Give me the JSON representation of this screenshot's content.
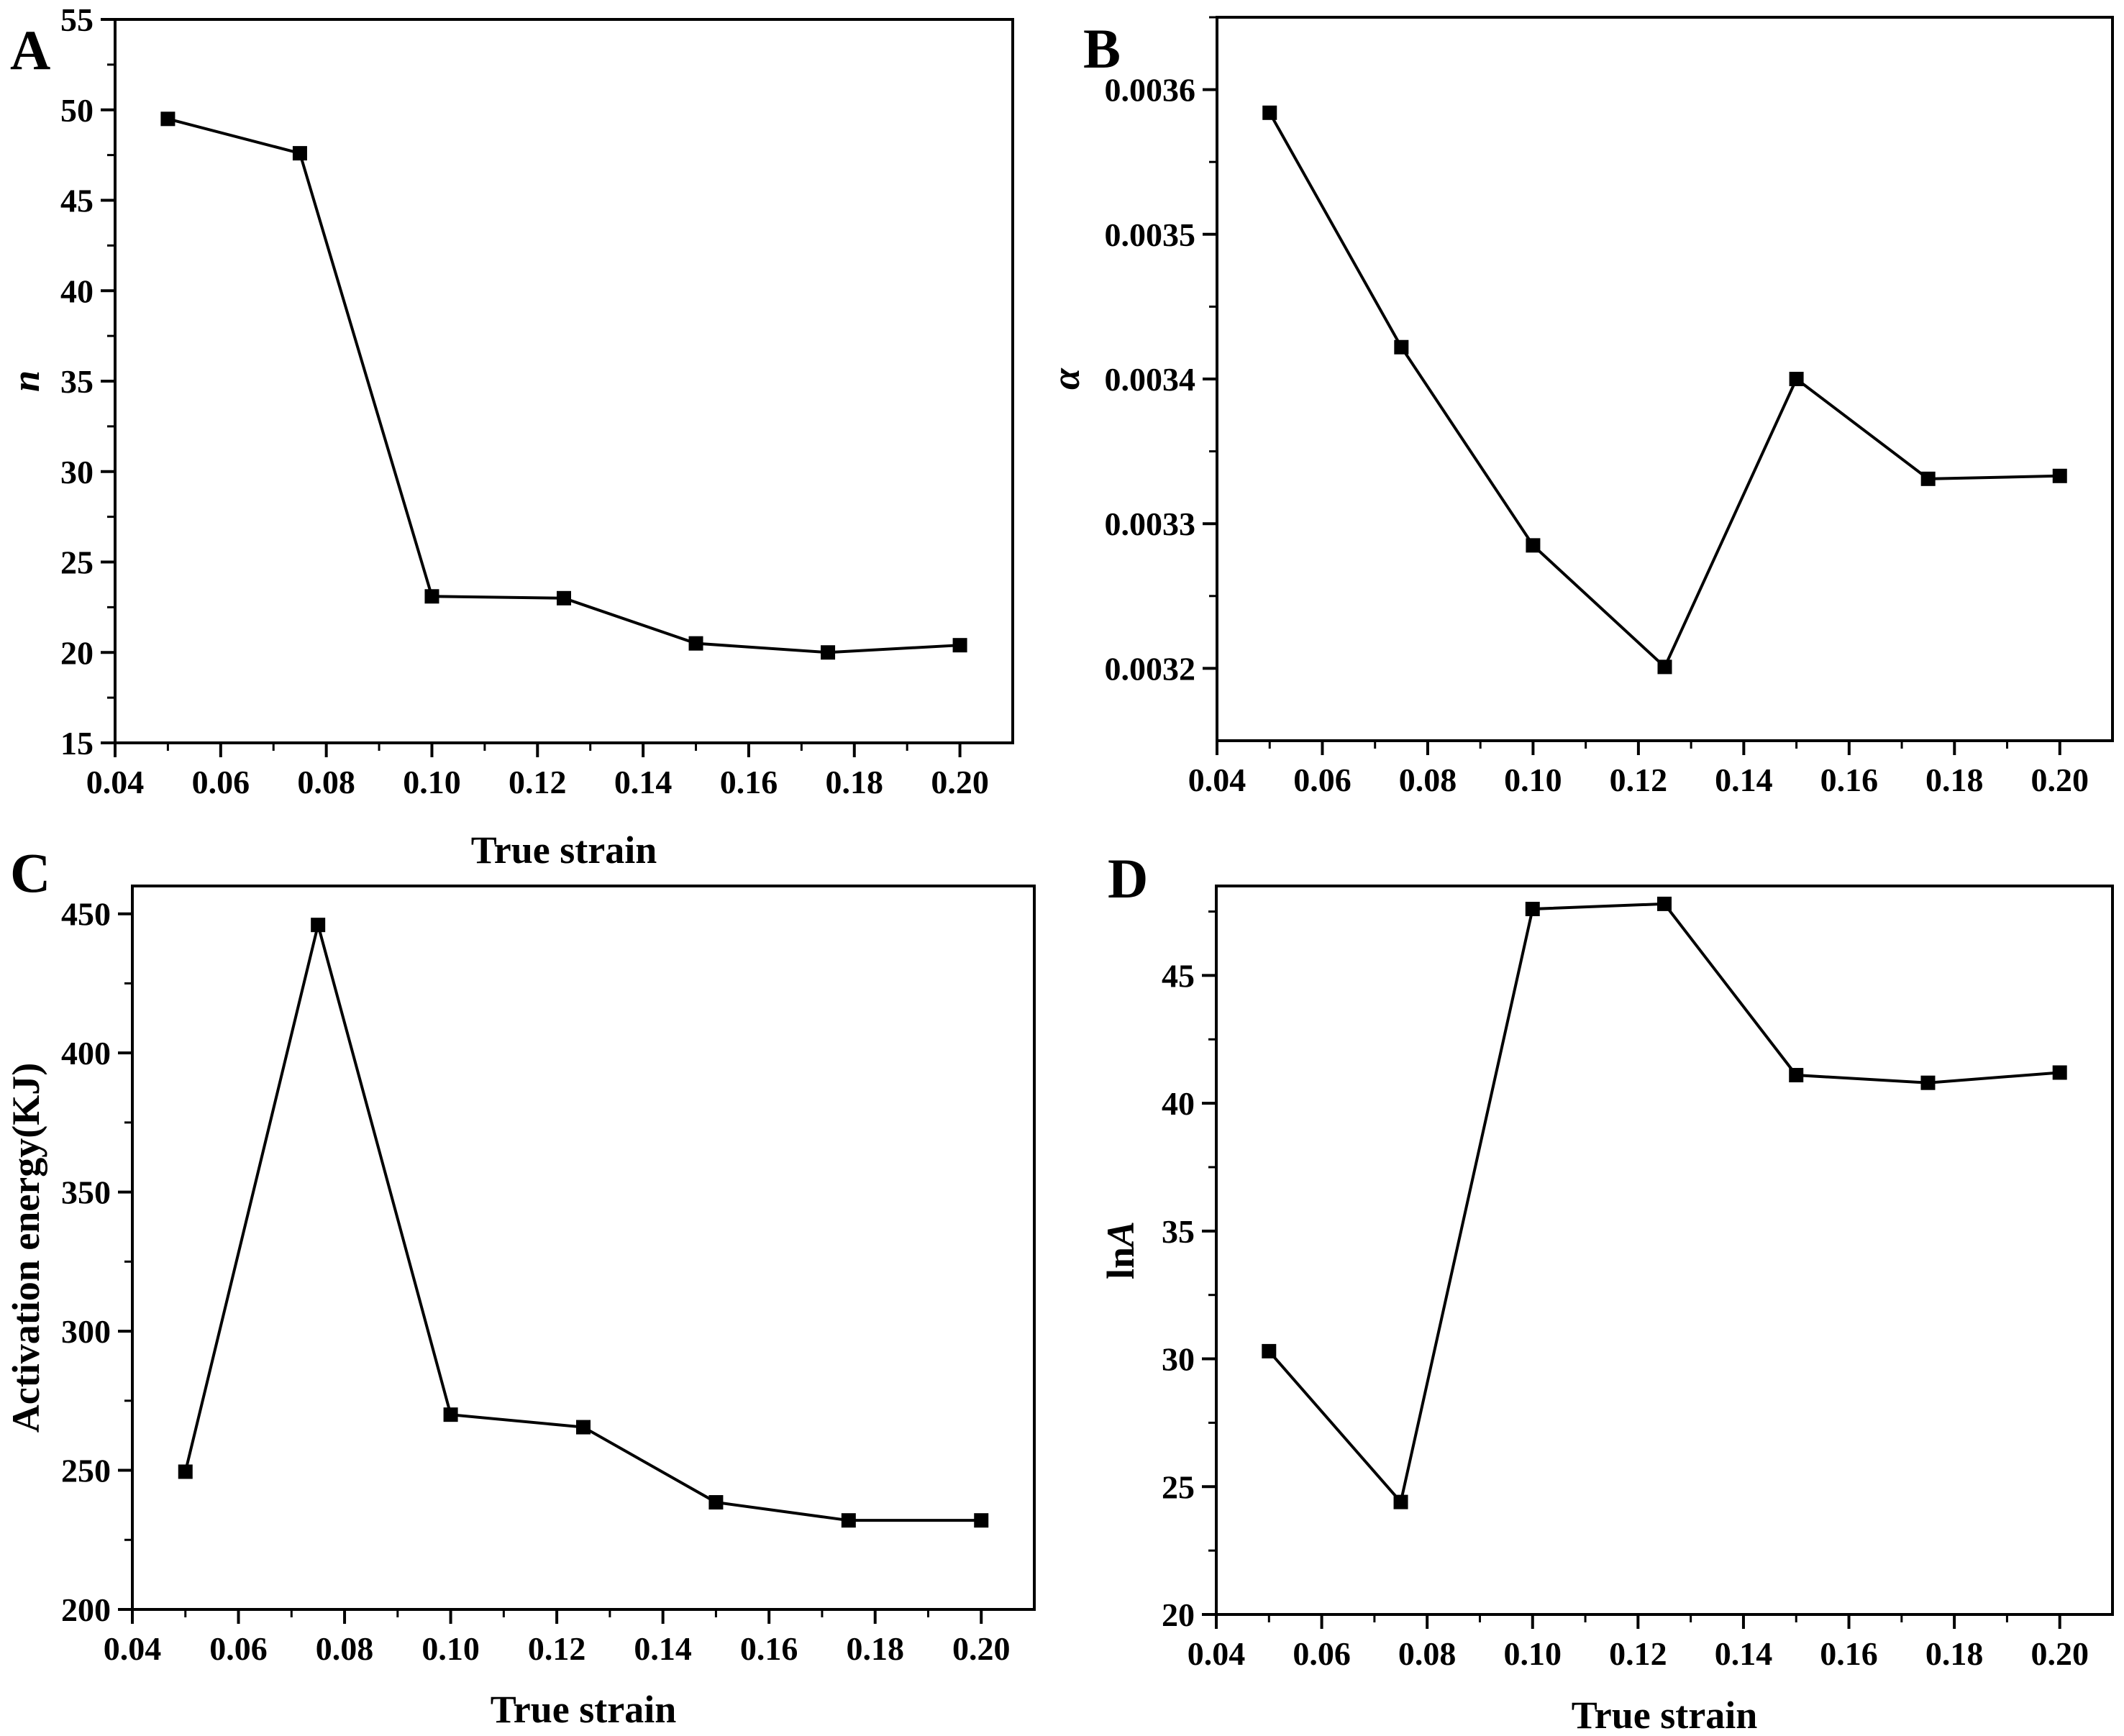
{
  "chart_data": [
    {
      "panel": "A",
      "type": "line",
      "xlabel": "True strain",
      "ylabel": "n",
      "xlim": [
        0.04,
        0.21
      ],
      "ylim": [
        15,
        55
      ],
      "xticks": [
        "0.04",
        "0.06",
        "0.08",
        "0.10",
        "0.12",
        "0.14",
        "0.16",
        "0.18",
        "0.20"
      ],
      "yticks": [
        "15",
        "20",
        "25",
        "30",
        "35",
        "40",
        "45",
        "50",
        "55"
      ],
      "x": [
        0.05,
        0.075,
        0.1,
        0.125,
        0.15,
        0.175,
        0.2
      ],
      "values": [
        49.5,
        47.6,
        23.1,
        23.0,
        20.5,
        20.0,
        20.4
      ],
      "marker": "square",
      "grid": false,
      "legend": null
    },
    {
      "panel": "B",
      "type": "line",
      "xlabel": "",
      "ylabel": "α",
      "xlim": [
        0.04,
        0.21
      ],
      "ylim": [
        0.00315,
        0.00365
      ],
      "xticks": [
        "0.04",
        "0.06",
        "0.08",
        "0.10",
        "0.12",
        "0.14",
        "0.16",
        "0.18",
        "0.20"
      ],
      "yticks": [
        "0.0032",
        "0.0033",
        "0.0034",
        "0.0035",
        "0.0036"
      ],
      "x": [
        0.05,
        0.075,
        0.1,
        0.125,
        0.15,
        0.175,
        0.2
      ],
      "values": [
        0.003584,
        0.003422,
        0.003285,
        0.003201,
        0.0034,
        0.003331,
        0.003333
      ],
      "marker": "square",
      "grid": false,
      "legend": null
    },
    {
      "panel": "C",
      "type": "line",
      "xlabel": "True strain",
      "ylabel": "Activation energy(KJ)",
      "xlim": [
        0.04,
        0.21
      ],
      "ylim": [
        200,
        460
      ],
      "xticks": [
        "0.04",
        "0.06",
        "0.08",
        "0.10",
        "0.12",
        "0.14",
        "0.16",
        "0.18",
        "0.20"
      ],
      "yticks": [
        "200",
        "250",
        "300",
        "350",
        "400",
        "450"
      ],
      "x": [
        0.05,
        0.075,
        0.1,
        0.125,
        0.15,
        0.175,
        0.2
      ],
      "values": [
        249.5,
        446,
        270,
        265.5,
        238.5,
        232,
        232
      ],
      "marker": "square",
      "grid": false,
      "legend": null
    },
    {
      "panel": "D",
      "type": "line",
      "xlabel": "True strain",
      "ylabel": "lnA",
      "xlim": [
        0.04,
        0.21
      ],
      "ylim": [
        20,
        48.5
      ],
      "xticks": [
        "0.04",
        "0.06",
        "0.08",
        "0.10",
        "0.12",
        "0.14",
        "0.16",
        "0.18",
        "0.20"
      ],
      "yticks": [
        "20",
        "25",
        "30",
        "35",
        "40",
        "45"
      ],
      "x": [
        0.05,
        0.075,
        0.1,
        0.125,
        0.15,
        0.175,
        0.2
      ],
      "values": [
        30.3,
        24.4,
        47.6,
        47.8,
        41.1,
        40.8,
        41.2
      ],
      "marker": "square",
      "grid": false,
      "legend": null
    }
  ]
}
